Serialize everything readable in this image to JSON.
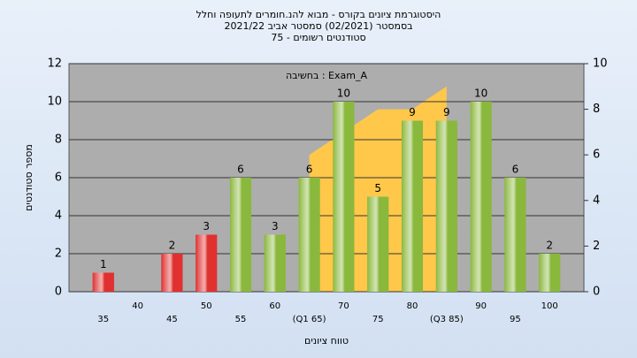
{
  "chart_data": {
    "type": "bar",
    "title": "היסטוגרמת ציונים בקורס - מבוא להנ.חומרים לתעופה וחלל",
    "subtitle": "בסמסטר (02/2021) סמסטר אביב 2021/22",
    "subtitle2": "סטודנטים רשומים - 75",
    "annotation": "בחשיבה : Exam_A",
    "x_label": "טווח ציונים",
    "y_label": "מספר סטודנטים",
    "categories": [
      "35",
      "40",
      "45",
      "50",
      "55",
      "60",
      "(Q1 65)",
      "70",
      "75",
      "80",
      "(Q3 85)",
      "90",
      "95",
      "100"
    ],
    "values": [
      1,
      0,
      2,
      3,
      6,
      3,
      6,
      10,
      5,
      9,
      9,
      10,
      6,
      2
    ],
    "colors": [
      "#e03030",
      "#e03030",
      "#e03030",
      "#e03030",
      "#8ab83c",
      "#8ab83c",
      "#8ab83c",
      "#8ab83c",
      "#8ab83c",
      "#8ab83c",
      "#8ab83c",
      "#8ab83c",
      "#8ab83c",
      "#8ab83c"
    ],
    "ylim": [
      0,
      12
    ],
    "yticks": [
      0,
      2,
      4,
      6,
      8,
      10,
      12
    ],
    "y2lim": [
      0,
      10
    ],
    "y2ticks": [
      0,
      2,
      4,
      6,
      8,
      10
    ],
    "area": {
      "x": [
        65,
        75,
        80,
        85
      ],
      "values": [
        6,
        8,
        8,
        9
      ],
      "color": "#ffc84a",
      "axis": "y2"
    },
    "grid": true
  }
}
